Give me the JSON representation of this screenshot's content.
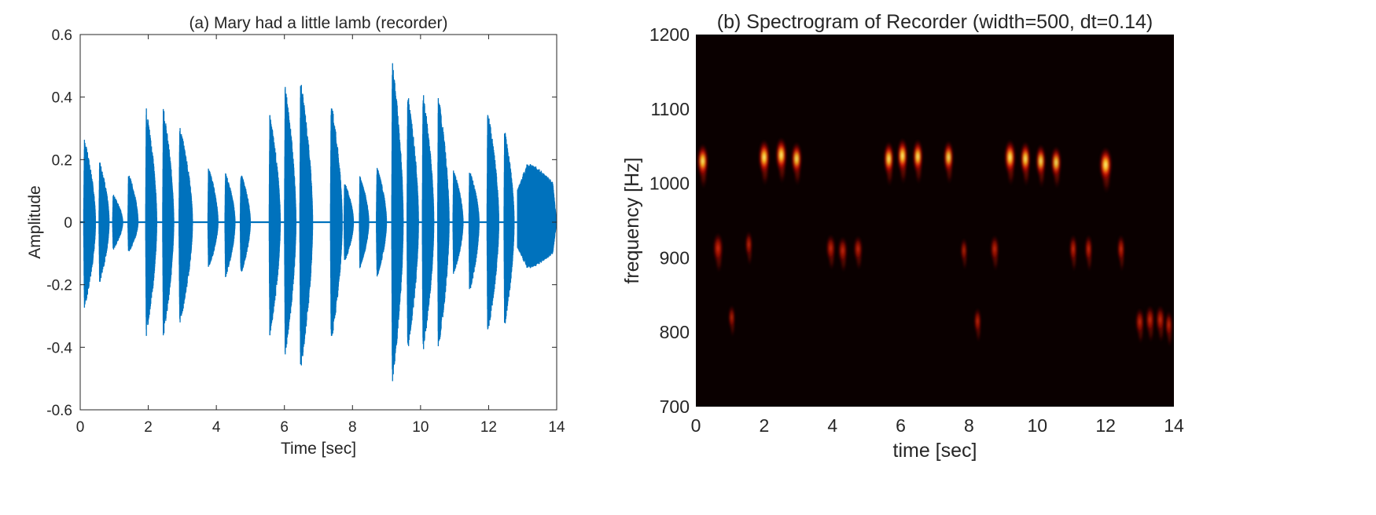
{
  "chart_data": [
    {
      "type": "line",
      "title": "(a) Mary had a little lamb (recorder)",
      "xlabel": "Time [sec]",
      "ylabel": "Amplitude",
      "xlim": [
        0,
        14
      ],
      "ylim": [
        -0.6,
        0.6
      ],
      "xticks": [
        0,
        2,
        4,
        6,
        8,
        10,
        12,
        14
      ],
      "xtick_labels": [
        "0",
        "2",
        "4",
        "6",
        "8",
        "10",
        "12",
        "14"
      ],
      "yticks": [
        -0.6,
        -0.4,
        -0.2,
        0,
        0.2,
        0.4,
        0.6
      ],
      "ytick_labels": [
        "-0.6",
        "-0.4",
        "-0.2",
        "0",
        "0.2",
        "0.4",
        "0.6"
      ],
      "grid": false,
      "color": "#0072BD",
      "notes": [
        {
          "t": 0.1,
          "pos": 0.27,
          "neg": -0.28,
          "dur": 0.35
        },
        {
          "t": 0.55,
          "pos": 0.2,
          "neg": -0.2,
          "dur": 0.3
        },
        {
          "t": 0.95,
          "pos": 0.09,
          "neg": -0.09,
          "dur": 0.3
        },
        {
          "t": 1.4,
          "pos": 0.16,
          "neg": -0.1,
          "dur": 0.3
        },
        {
          "t": 1.92,
          "pos": 0.37,
          "neg": -0.37,
          "dur": 0.33
        },
        {
          "t": 2.42,
          "pos": 0.37,
          "neg": -0.37,
          "dur": 0.33
        },
        {
          "t": 2.9,
          "pos": 0.31,
          "neg": -0.33,
          "dur": 0.4
        },
        {
          "t": 3.75,
          "pos": 0.18,
          "neg": -0.15,
          "dur": 0.3
        },
        {
          "t": 4.25,
          "pos": 0.16,
          "neg": -0.18,
          "dur": 0.3
        },
        {
          "t": 4.7,
          "pos": 0.16,
          "neg": -0.17,
          "dur": 0.3
        },
        {
          "t": 5.55,
          "pos": 0.35,
          "neg": -0.37,
          "dur": 0.33
        },
        {
          "t": 6.0,
          "pos": 0.44,
          "neg": -0.43,
          "dur": 0.34
        },
        {
          "t": 6.45,
          "pos": 0.46,
          "neg": -0.48,
          "dur": 0.38
        },
        {
          "t": 7.35,
          "pos": 0.39,
          "neg": -0.39,
          "dur": 0.35
        },
        {
          "t": 7.75,
          "pos": 0.13,
          "neg": -0.13,
          "dur": 0.28
        },
        {
          "t": 8.2,
          "pos": 0.15,
          "neg": -0.15,
          "dur": 0.28
        },
        {
          "t": 8.7,
          "pos": 0.18,
          "neg": -0.18,
          "dur": 0.3
        },
        {
          "t": 9.15,
          "pos": 0.52,
          "neg": -0.52,
          "dur": 0.34
        },
        {
          "t": 9.6,
          "pos": 0.42,
          "neg": -0.42,
          "dur": 0.34
        },
        {
          "t": 10.05,
          "pos": 0.42,
          "neg": -0.42,
          "dur": 0.34
        },
        {
          "t": 10.5,
          "pos": 0.41,
          "neg": -0.41,
          "dur": 0.34
        },
        {
          "t": 10.95,
          "pos": 0.17,
          "neg": -0.17,
          "dur": 0.3
        },
        {
          "t": 11.42,
          "pos": 0.17,
          "neg": -0.23,
          "dur": 0.3
        },
        {
          "t": 11.95,
          "pos": 0.36,
          "neg": -0.36,
          "dur": 0.35
        },
        {
          "t": 12.45,
          "pos": 0.3,
          "neg": -0.34,
          "dur": 0.3
        },
        {
          "t": 12.85,
          "pos": 0.19,
          "neg": -0.15,
          "dur": 1.15,
          "sustain": true
        }
      ]
    },
    {
      "type": "heatmap",
      "title": "(b) Spectrogram of Recorder (width=500, dt=0.14)",
      "xlabel": "time [sec]",
      "ylabel": "frequency [Hz]",
      "xlim": [
        0,
        14
      ],
      "ylim": [
        700,
        1200
      ],
      "xticks": [
        0,
        2,
        4,
        6,
        8,
        10,
        12,
        14
      ],
      "xtick_labels": [
        "0",
        "2",
        "4",
        "6",
        "8",
        "10",
        "12",
        "14"
      ],
      "yticks": [
        700,
        800,
        900,
        1000,
        1100,
        1200
      ],
      "ytick_labels": [
        "700",
        "800",
        "900",
        "1000",
        "1100",
        "1200"
      ],
      "colormap": "hot",
      "background_color": "#0a0000",
      "peaks": [
        {
          "t": 0.2,
          "f": 1030,
          "intensity": 0.9,
          "dt": 0.15
        },
        {
          "t": 0.65,
          "f": 913,
          "intensity": 0.7,
          "dt": 0.15
        },
        {
          "t": 1.05,
          "f": 820,
          "intensity": 0.4,
          "dt": 0.12
        },
        {
          "t": 1.55,
          "f": 918,
          "intensity": 0.5,
          "dt": 0.12
        },
        {
          "t": 2.0,
          "f": 1035,
          "intensity": 0.95,
          "dt": 0.15
        },
        {
          "t": 2.5,
          "f": 1038,
          "intensity": 0.95,
          "dt": 0.15
        },
        {
          "t": 2.95,
          "f": 1033,
          "intensity": 0.85,
          "dt": 0.15
        },
        {
          "t": 3.95,
          "f": 913,
          "intensity": 0.55,
          "dt": 0.15
        },
        {
          "t": 4.3,
          "f": 910,
          "intensity": 0.55,
          "dt": 0.15
        },
        {
          "t": 4.75,
          "f": 912,
          "intensity": 0.5,
          "dt": 0.15
        },
        {
          "t": 5.65,
          "f": 1033,
          "intensity": 0.9,
          "dt": 0.14
        },
        {
          "t": 6.05,
          "f": 1037,
          "intensity": 0.95,
          "dt": 0.14
        },
        {
          "t": 6.5,
          "f": 1036,
          "intensity": 0.9,
          "dt": 0.14
        },
        {
          "t": 7.4,
          "f": 1035,
          "intensity": 0.85,
          "dt": 0.14
        },
        {
          "t": 7.85,
          "f": 910,
          "intensity": 0.4,
          "dt": 0.12
        },
        {
          "t": 8.25,
          "f": 815,
          "intensity": 0.5,
          "dt": 0.12
        },
        {
          "t": 8.75,
          "f": 912,
          "intensity": 0.55,
          "dt": 0.14
        },
        {
          "t": 9.2,
          "f": 1035,
          "intensity": 0.95,
          "dt": 0.15
        },
        {
          "t": 9.65,
          "f": 1033,
          "intensity": 0.9,
          "dt": 0.14
        },
        {
          "t": 10.1,
          "f": 1030,
          "intensity": 0.85,
          "dt": 0.14
        },
        {
          "t": 10.55,
          "f": 1028,
          "intensity": 0.8,
          "dt": 0.15
        },
        {
          "t": 11.05,
          "f": 912,
          "intensity": 0.6,
          "dt": 0.12
        },
        {
          "t": 11.5,
          "f": 912,
          "intensity": 0.6,
          "dt": 0.12
        },
        {
          "t": 12.0,
          "f": 1025,
          "intensity": 0.95,
          "dt": 0.17
        },
        {
          "t": 12.45,
          "f": 912,
          "intensity": 0.6,
          "dt": 0.12
        },
        {
          "t": 13.0,
          "f": 814,
          "intensity": 0.55,
          "dt": 0.14
        },
        {
          "t": 13.3,
          "f": 817,
          "intensity": 0.6,
          "dt": 0.14
        },
        {
          "t": 13.6,
          "f": 817,
          "intensity": 0.6,
          "dt": 0.14
        },
        {
          "t": 13.85,
          "f": 810,
          "intensity": 0.55,
          "dt": 0.12
        }
      ]
    }
  ]
}
